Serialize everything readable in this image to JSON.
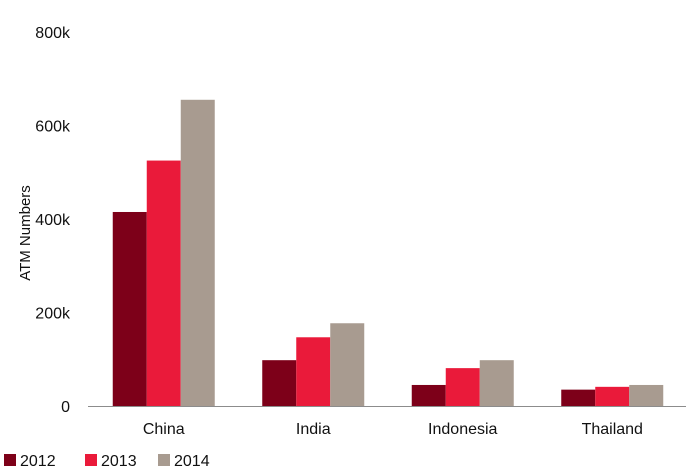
{
  "chart_data": {
    "type": "bar",
    "title": "",
    "xlabel": "",
    "ylabel": "ATM Numbers",
    "categories": [
      "China",
      "India",
      "Indonesia",
      "Thailand"
    ],
    "series": [
      {
        "name": "2012",
        "color": "#7d0019",
        "values": [
          415000,
          98000,
          45000,
          35000
        ]
      },
      {
        "name": "2013",
        "color": "#ea1a3a",
        "values": [
          525000,
          147000,
          81000,
          41000
        ]
      },
      {
        "name": "2014",
        "color": "#a89b90",
        "values": [
          655000,
          177000,
          98000,
          45000
        ]
      }
    ],
    "ylim": [
      0,
      800000
    ],
    "y_ticks": [
      {
        "value": 0,
        "label": "0"
      },
      {
        "value": 200000,
        "label": "200k"
      },
      {
        "value": 400000,
        "label": "400k"
      },
      {
        "value": 600000,
        "label": "600k"
      },
      {
        "value": 800000,
        "label": "800k"
      }
    ],
    "grid": false,
    "legend_position": "bottom-left"
  }
}
